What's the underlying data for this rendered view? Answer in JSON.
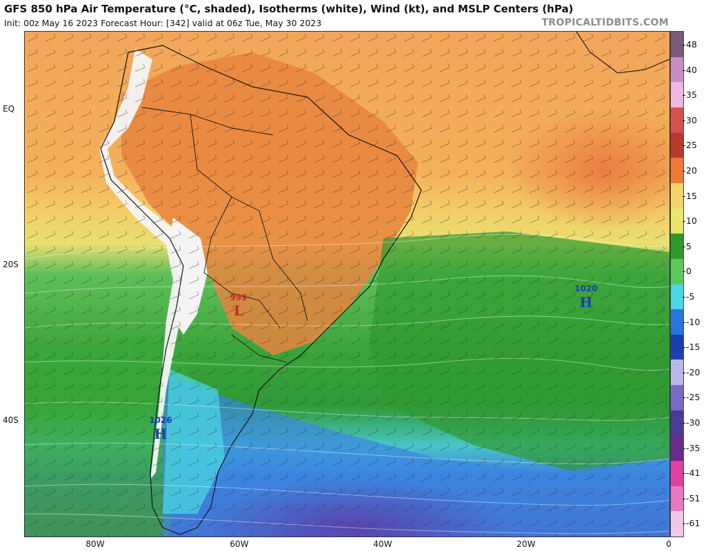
{
  "header": {
    "title": "GFS 850 hPa Air Temperature (°C, shaded), Isotherms (white), Wind (kt), and MSLP Centers (hPa)",
    "subtitle": "Init: 00z May 16 2023   Forecast Hour: [342]   valid at 06z Tue, May 30 2023",
    "brand": "TROPICALTIDBITS.COM"
  },
  "map": {
    "lat_labels": [
      "EQ",
      "20S",
      "40S"
    ],
    "lon_labels": [
      "80W",
      "60W",
      "40W",
      "20W",
      "0"
    ],
    "pressure_centers": [
      {
        "value": "999",
        "symbol": "L",
        "color": "#c62828"
      },
      {
        "value": "1020",
        "symbol": "H",
        "color": "#1a3fb0"
      },
      {
        "value": "1026",
        "symbol": "H",
        "color": "#1a3fb0"
      }
    ]
  },
  "colorbar": {
    "labels": [
      "48",
      "40",
      "35",
      "30",
      "25",
      "20",
      "15",
      "10",
      "5",
      "0",
      "-5",
      "-10",
      "-15",
      "-20",
      "-25",
      "-30",
      "-35",
      "-41",
      "-51",
      "-61"
    ],
    "colors": [
      "#7a5a78",
      "#c88ec4",
      "#f0b8e0",
      "#d6504e",
      "#b83a2e",
      "#f07a36",
      "#f6d36a",
      "#e8e86a",
      "#2e9a2e",
      "#5cc85c",
      "#48d8e8",
      "#2a74e0",
      "#1a3fb0",
      "#b8b8e8",
      "#7a6ac8",
      "#4a3a9a",
      "#6a2a8a",
      "#e040a0",
      "#e878c0",
      "#f0c8e8"
    ]
  }
}
